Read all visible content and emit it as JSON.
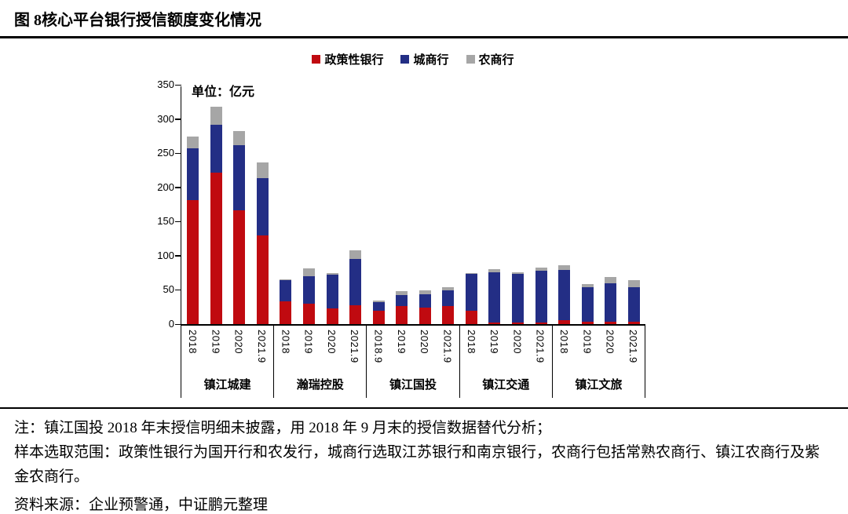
{
  "figure": {
    "label": "图 8",
    "title": "核心平台银行授信额度变化情况"
  },
  "chart_data": {
    "type": "bar",
    "stacked": true,
    "title": "核心平台银行授信额度变化情况",
    "unit_label": "单位：亿元",
    "unit": "亿元",
    "ylim": [
      0,
      350
    ],
    "yticks": [
      0,
      50,
      100,
      150,
      200,
      250,
      300,
      350
    ],
    "legend_position": "top",
    "grid": false,
    "groups": [
      {
        "name": "镇江城建",
        "years": [
          "2018",
          "2019",
          "2020",
          "2021.9"
        ]
      },
      {
        "name": "瀚瑞控股",
        "years": [
          "2018",
          "2019",
          "2020",
          "2021.9"
        ]
      },
      {
        "name": "镇江国投",
        "years": [
          "2018.9",
          "2019",
          "2020",
          "2021.9"
        ]
      },
      {
        "name": "镇江交通",
        "years": [
          "2018",
          "2019",
          "2020",
          "2021.9"
        ]
      },
      {
        "name": "镇江文旅",
        "years": [
          "2018",
          "2019",
          "2020",
          "2021.9"
        ]
      }
    ],
    "series": [
      {
        "name": "政策性银行",
        "color": "#C00A10",
        "values": [
          [
            181,
            221,
            167,
            130
          ],
          [
            33,
            30,
            23,
            28
          ],
          [
            19,
            26,
            24,
            27
          ],
          [
            20,
            2,
            2,
            2
          ],
          [
            6,
            3,
            4,
            4
          ]
        ]
      },
      {
        "name": "城商行",
        "color": "#232E85",
        "values": [
          [
            76,
            70,
            95,
            83
          ],
          [
            31,
            40,
            49,
            67
          ],
          [
            13,
            16,
            20,
            22
          ],
          [
            54,
            74,
            71,
            76
          ],
          [
            73,
            51,
            56,
            50
          ]
        ]
      },
      {
        "name": "农商行",
        "color": "#A6A6A6",
        "values": [
          [
            17,
            27,
            20,
            23
          ],
          [
            2,
            11,
            3,
            13
          ],
          [
            3,
            6,
            5,
            5
          ],
          [
            1,
            4,
            3,
            5
          ],
          [
            7,
            5,
            9,
            10
          ]
        ]
      }
    ]
  },
  "notes": {
    "note1": "注：镇江国投 2018 年末授信明细未披露，用 2018 年 9 月末的授信数据替代分析；",
    "note2": "样本选取范围：政策性银行为国开行和农发行，城商行选取江苏银行和南京银行，农商行包括常熟农商行、镇江农商行及紫金农商行。",
    "source": "资料来源：企业预警通，中证鹏元整理"
  }
}
